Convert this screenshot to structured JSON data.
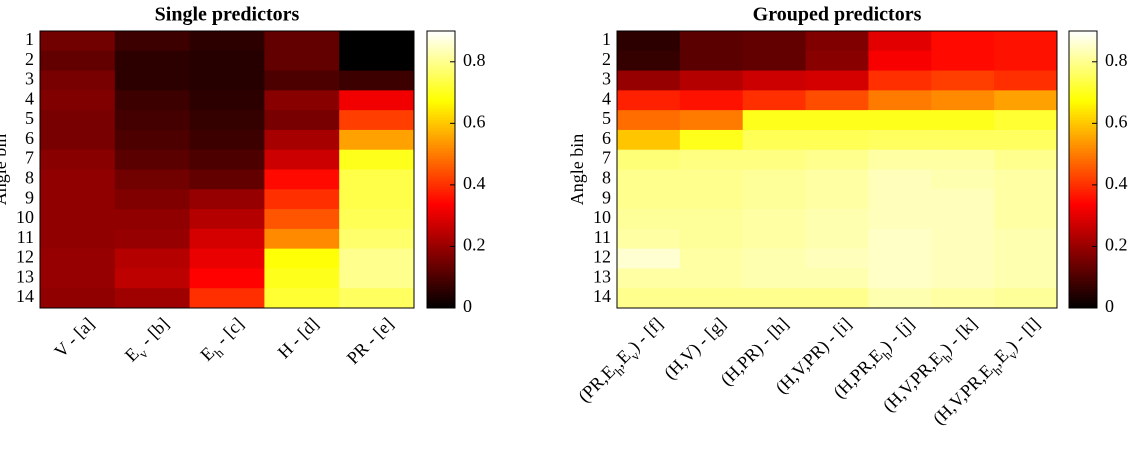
{
  "chart_data": [
    {
      "type": "heatmap",
      "title": "Single predictors",
      "y_label": "Angle bin",
      "colormap": "hot",
      "categories": [
        "V - [a]",
        "E_v - [b]",
        "E_h - [c]",
        "H - [d]",
        "PR - [e]"
      ],
      "rows": [
        "1",
        "2",
        "3",
        "4",
        "5",
        "6",
        "7",
        "8",
        "9",
        "10",
        "11",
        "12",
        "13",
        "14"
      ],
      "values": [
        [
          0.15,
          0.08,
          0.06,
          0.13,
          0.0
        ],
        [
          0.13,
          0.06,
          0.05,
          0.13,
          0.0
        ],
        [
          0.16,
          0.06,
          0.05,
          0.1,
          0.08
        ],
        [
          0.17,
          0.08,
          0.06,
          0.18,
          0.32
        ],
        [
          0.16,
          0.09,
          0.07,
          0.16,
          0.42
        ],
        [
          0.16,
          0.1,
          0.08,
          0.22,
          0.55
        ],
        [
          0.18,
          0.12,
          0.1,
          0.27,
          0.7
        ],
        [
          0.19,
          0.15,
          0.13,
          0.35,
          0.74
        ],
        [
          0.19,
          0.17,
          0.2,
          0.4,
          0.74
        ],
        [
          0.19,
          0.19,
          0.24,
          0.45,
          0.75
        ],
        [
          0.19,
          0.2,
          0.28,
          0.52,
          0.77
        ],
        [
          0.2,
          0.24,
          0.31,
          0.68,
          0.8
        ],
        [
          0.2,
          0.25,
          0.34,
          0.7,
          0.8
        ],
        [
          0.19,
          0.21,
          0.4,
          0.72,
          0.76
        ]
      ],
      "clim": [
        0,
        0.9
      ],
      "cticks": [
        0,
        0.2,
        0.4,
        0.6,
        0.8
      ]
    },
    {
      "type": "heatmap",
      "title": "Grouped predictors",
      "y_label": "Angle bin",
      "colormap": "hot",
      "categories": [
        "(PR,E_h,E_v) - [f]",
        "(H,V) - [g]",
        "(H,PR) - [h]",
        "(H,V,PR) - [i]",
        "(H,PR,E_h) - [j]",
        "(H,V,PR,E_h) - [k]",
        "(H,V,PR,E_h,E_v) - [l]"
      ],
      "rows": [
        "1",
        "2",
        "3",
        "4",
        "5",
        "6",
        "7",
        "8",
        "9",
        "10",
        "11",
        "12",
        "13",
        "14"
      ],
      "values": [
        [
          0.06,
          0.12,
          0.13,
          0.17,
          0.3,
          0.35,
          0.36
        ],
        [
          0.07,
          0.12,
          0.13,
          0.18,
          0.33,
          0.35,
          0.36
        ],
        [
          0.2,
          0.24,
          0.27,
          0.28,
          0.4,
          0.42,
          0.4
        ],
        [
          0.38,
          0.36,
          0.4,
          0.44,
          0.5,
          0.52,
          0.55
        ],
        [
          0.48,
          0.5,
          0.7,
          0.7,
          0.7,
          0.7,
          0.72
        ],
        [
          0.6,
          0.7,
          0.75,
          0.75,
          0.76,
          0.76,
          0.76
        ],
        [
          0.78,
          0.79,
          0.79,
          0.8,
          0.82,
          0.82,
          0.8
        ],
        [
          0.8,
          0.8,
          0.81,
          0.82,
          0.84,
          0.83,
          0.82
        ],
        [
          0.8,
          0.8,
          0.81,
          0.82,
          0.84,
          0.84,
          0.82
        ],
        [
          0.81,
          0.81,
          0.82,
          0.83,
          0.84,
          0.84,
          0.82
        ],
        [
          0.82,
          0.81,
          0.82,
          0.83,
          0.85,
          0.84,
          0.83
        ],
        [
          0.86,
          0.82,
          0.83,
          0.84,
          0.85,
          0.84,
          0.83
        ],
        [
          0.82,
          0.82,
          0.83,
          0.83,
          0.85,
          0.84,
          0.83
        ],
        [
          0.8,
          0.8,
          0.8,
          0.8,
          0.83,
          0.82,
          0.81
        ]
      ],
      "clim": [
        0,
        0.9
      ],
      "cticks": [
        0,
        0.2,
        0.4,
        0.6,
        0.8
      ]
    }
  ]
}
